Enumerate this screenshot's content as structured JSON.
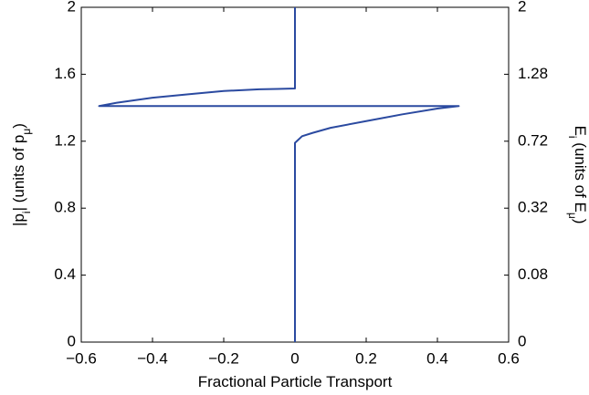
{
  "chart_data": {
    "type": "line",
    "xlabel": "Fractional Particle Transport",
    "ylabel": [
      "|p",
      "i",
      "| (units of p",
      "μ",
      ")"
    ],
    "y2label": [
      "E",
      "i",
      " (units of E",
      "μ",
      ")"
    ],
    "xlim": [
      -0.6,
      0.6
    ],
    "xticks": [
      {
        "value": -0.6,
        "label": "−0.6"
      },
      {
        "value": -0.4,
        "label": "−0.4"
      },
      {
        "value": -0.2,
        "label": "−0.2"
      },
      0,
      0.2,
      0.4,
      0.6
    ],
    "ylim": [
      0,
      2
    ],
    "yticks": [
      0,
      0.4,
      0.8,
      1.2,
      1.6,
      2
    ],
    "y2lim": [
      0,
      2
    ],
    "y2scale": "sqrt",
    "y2ticks": [
      0,
      0.08,
      0.32,
      0.72,
      1.28,
      2
    ],
    "series": [
      {
        "color": "#2b4aa0",
        "x": [
          0,
          0,
          0.02,
          0.05,
          0.1,
          0.2,
          0.3,
          0.4,
          0.46,
          -0.55,
          -0.5,
          -0.4,
          -0.3,
          -0.2,
          -0.1,
          -0.05,
          0,
          0,
          0
        ],
        "values": [
          0,
          1.19,
          1.23,
          1.25,
          1.28,
          1.32,
          1.36,
          1.395,
          1.41,
          1.41,
          1.43,
          1.46,
          1.48,
          1.5,
          1.51,
          1.512,
          1.515,
          1.52,
          2
        ]
      }
    ]
  }
}
